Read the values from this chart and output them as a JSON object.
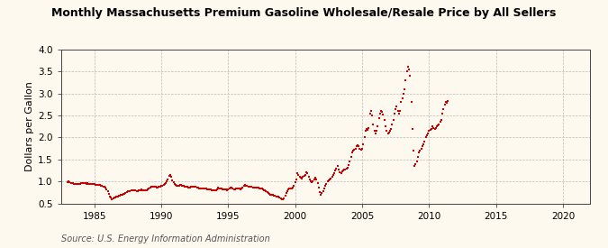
{
  "title": "Monthly Massachusetts Premium Gasoline Wholesale/Resale Price by All Sellers",
  "ylabel": "Dollars per Gallon",
  "source": "Source: U.S. Energy Information Administration",
  "background_color": "#fef9ee",
  "dot_color": "#cc0000",
  "dot_size": 3,
  "xlim": [
    1982.5,
    2022
  ],
  "ylim": [
    0.5,
    4.0
  ],
  "xticks": [
    1985,
    1990,
    1995,
    2000,
    2005,
    2010,
    2015,
    2020
  ],
  "yticks": [
    0.5,
    1.0,
    1.5,
    2.0,
    2.5,
    3.0,
    3.5,
    4.0
  ],
  "data": [
    [
      1983.0,
      0.99
    ],
    [
      1983.08,
      1.0
    ],
    [
      1983.17,
      0.99
    ],
    [
      1983.25,
      0.97
    ],
    [
      1983.33,
      0.96
    ],
    [
      1983.42,
      0.96
    ],
    [
      1983.5,
      0.95
    ],
    [
      1983.58,
      0.95
    ],
    [
      1983.67,
      0.94
    ],
    [
      1983.75,
      0.94
    ],
    [
      1983.83,
      0.94
    ],
    [
      1983.92,
      0.95
    ],
    [
      1984.0,
      0.96
    ],
    [
      1984.08,
      0.96
    ],
    [
      1984.17,
      0.97
    ],
    [
      1984.25,
      0.97
    ],
    [
      1984.33,
      0.96
    ],
    [
      1984.42,
      0.95
    ],
    [
      1984.5,
      0.96
    ],
    [
      1984.58,
      0.95
    ],
    [
      1984.67,
      0.95
    ],
    [
      1984.75,
      0.94
    ],
    [
      1984.83,
      0.94
    ],
    [
      1984.92,
      0.94
    ],
    [
      1985.0,
      0.94
    ],
    [
      1985.08,
      0.93
    ],
    [
      1985.17,
      0.93
    ],
    [
      1985.25,
      0.93
    ],
    [
      1985.33,
      0.93
    ],
    [
      1985.42,
      0.92
    ],
    [
      1985.5,
      0.91
    ],
    [
      1985.58,
      0.9
    ],
    [
      1985.67,
      0.89
    ],
    [
      1985.75,
      0.88
    ],
    [
      1985.83,
      0.85
    ],
    [
      1985.92,
      0.82
    ],
    [
      1986.0,
      0.78
    ],
    [
      1986.08,
      0.72
    ],
    [
      1986.17,
      0.65
    ],
    [
      1986.25,
      0.63
    ],
    [
      1986.33,
      0.6
    ],
    [
      1986.42,
      0.61
    ],
    [
      1986.5,
      0.63
    ],
    [
      1986.58,
      0.64
    ],
    [
      1986.67,
      0.65
    ],
    [
      1986.75,
      0.66
    ],
    [
      1986.83,
      0.67
    ],
    [
      1986.92,
      0.68
    ],
    [
      1987.0,
      0.69
    ],
    [
      1987.08,
      0.7
    ],
    [
      1987.17,
      0.71
    ],
    [
      1987.25,
      0.72
    ],
    [
      1987.33,
      0.74
    ],
    [
      1987.42,
      0.75
    ],
    [
      1987.5,
      0.77
    ],
    [
      1987.58,
      0.78
    ],
    [
      1987.67,
      0.78
    ],
    [
      1987.75,
      0.79
    ],
    [
      1987.83,
      0.8
    ],
    [
      1987.92,
      0.8
    ],
    [
      1988.0,
      0.79
    ],
    [
      1988.08,
      0.79
    ],
    [
      1988.17,
      0.78
    ],
    [
      1988.25,
      0.78
    ],
    [
      1988.33,
      0.79
    ],
    [
      1988.42,
      0.8
    ],
    [
      1988.5,
      0.81
    ],
    [
      1988.58,
      0.8
    ],
    [
      1988.67,
      0.79
    ],
    [
      1988.75,
      0.79
    ],
    [
      1988.83,
      0.79
    ],
    [
      1988.92,
      0.8
    ],
    [
      1989.0,
      0.82
    ],
    [
      1989.08,
      0.84
    ],
    [
      1989.17,
      0.86
    ],
    [
      1989.25,
      0.88
    ],
    [
      1989.33,
      0.87
    ],
    [
      1989.42,
      0.87
    ],
    [
      1989.5,
      0.88
    ],
    [
      1989.58,
      0.87
    ],
    [
      1989.67,
      0.86
    ],
    [
      1989.75,
      0.86
    ],
    [
      1989.83,
      0.87
    ],
    [
      1989.92,
      0.88
    ],
    [
      1990.0,
      0.9
    ],
    [
      1990.08,
      0.91
    ],
    [
      1990.17,
      0.93
    ],
    [
      1990.25,
      0.95
    ],
    [
      1990.33,
      0.97
    ],
    [
      1990.42,
      1.0
    ],
    [
      1990.5,
      1.05
    ],
    [
      1990.58,
      1.12
    ],
    [
      1990.67,
      1.15
    ],
    [
      1990.75,
      1.1
    ],
    [
      1990.83,
      1.02
    ],
    [
      1990.92,
      0.98
    ],
    [
      1991.0,
      0.95
    ],
    [
      1991.08,
      0.92
    ],
    [
      1991.17,
      0.9
    ],
    [
      1991.25,
      0.9
    ],
    [
      1991.33,
      0.91
    ],
    [
      1991.42,
      0.92
    ],
    [
      1991.5,
      0.92
    ],
    [
      1991.58,
      0.91
    ],
    [
      1991.67,
      0.9
    ],
    [
      1991.75,
      0.89
    ],
    [
      1991.83,
      0.88
    ],
    [
      1991.92,
      0.87
    ],
    [
      1992.0,
      0.86
    ],
    [
      1992.08,
      0.85
    ],
    [
      1992.17,
      0.85
    ],
    [
      1992.25,
      0.87
    ],
    [
      1992.33,
      0.88
    ],
    [
      1992.42,
      0.87
    ],
    [
      1992.5,
      0.88
    ],
    [
      1992.58,
      0.87
    ],
    [
      1992.67,
      0.86
    ],
    [
      1992.75,
      0.85
    ],
    [
      1992.83,
      0.84
    ],
    [
      1992.92,
      0.83
    ],
    [
      1993.0,
      0.83
    ],
    [
      1993.08,
      0.83
    ],
    [
      1993.17,
      0.83
    ],
    [
      1993.25,
      0.83
    ],
    [
      1993.33,
      0.83
    ],
    [
      1993.42,
      0.82
    ],
    [
      1993.5,
      0.82
    ],
    [
      1993.58,
      0.82
    ],
    [
      1993.67,
      0.81
    ],
    [
      1993.75,
      0.8
    ],
    [
      1993.83,
      0.79
    ],
    [
      1993.92,
      0.79
    ],
    [
      1994.0,
      0.79
    ],
    [
      1994.08,
      0.8
    ],
    [
      1994.17,
      0.82
    ],
    [
      1994.25,
      0.85
    ],
    [
      1994.33,
      0.84
    ],
    [
      1994.42,
      0.84
    ],
    [
      1994.5,
      0.83
    ],
    [
      1994.58,
      0.82
    ],
    [
      1994.67,
      0.81
    ],
    [
      1994.75,
      0.81
    ],
    [
      1994.83,
      0.81
    ],
    [
      1994.92,
      0.8
    ],
    [
      1995.0,
      0.82
    ],
    [
      1995.08,
      0.83
    ],
    [
      1995.17,
      0.85
    ],
    [
      1995.25,
      0.85
    ],
    [
      1995.33,
      0.83
    ],
    [
      1995.42,
      0.82
    ],
    [
      1995.5,
      0.82
    ],
    [
      1995.58,
      0.83
    ],
    [
      1995.67,
      0.83
    ],
    [
      1995.75,
      0.83
    ],
    [
      1995.83,
      0.83
    ],
    [
      1995.92,
      0.82
    ],
    [
      1996.0,
      0.83
    ],
    [
      1996.08,
      0.86
    ],
    [
      1996.17,
      0.91
    ],
    [
      1996.25,
      0.93
    ],
    [
      1996.33,
      0.91
    ],
    [
      1996.42,
      0.9
    ],
    [
      1996.5,
      0.89
    ],
    [
      1996.58,
      0.89
    ],
    [
      1996.67,
      0.88
    ],
    [
      1996.75,
      0.87
    ],
    [
      1996.83,
      0.86
    ],
    [
      1996.92,
      0.85
    ],
    [
      1997.0,
      0.85
    ],
    [
      1997.08,
      0.85
    ],
    [
      1997.17,
      0.85
    ],
    [
      1997.25,
      0.86
    ],
    [
      1997.33,
      0.84
    ],
    [
      1997.42,
      0.84
    ],
    [
      1997.5,
      0.83
    ],
    [
      1997.58,
      0.82
    ],
    [
      1997.67,
      0.8
    ],
    [
      1997.75,
      0.79
    ],
    [
      1997.83,
      0.77
    ],
    [
      1997.92,
      0.75
    ],
    [
      1998.0,
      0.73
    ],
    [
      1998.08,
      0.72
    ],
    [
      1998.17,
      0.7
    ],
    [
      1998.25,
      0.7
    ],
    [
      1998.33,
      0.69
    ],
    [
      1998.42,
      0.68
    ],
    [
      1998.5,
      0.67
    ],
    [
      1998.58,
      0.66
    ],
    [
      1998.67,
      0.65
    ],
    [
      1998.75,
      0.65
    ],
    [
      1998.83,
      0.64
    ],
    [
      1998.92,
      0.62
    ],
    [
      1999.0,
      0.6
    ],
    [
      1999.08,
      0.6
    ],
    [
      1999.17,
      0.62
    ],
    [
      1999.25,
      0.68
    ],
    [
      1999.33,
      0.73
    ],
    [
      1999.42,
      0.78
    ],
    [
      1999.5,
      0.82
    ],
    [
      1999.58,
      0.84
    ],
    [
      1999.67,
      0.84
    ],
    [
      1999.75,
      0.83
    ],
    [
      1999.83,
      0.85
    ],
    [
      1999.92,
      0.9
    ],
    [
      2000.0,
      0.98
    ],
    [
      2000.08,
      1.05
    ],
    [
      2000.17,
      1.18
    ],
    [
      2000.25,
      1.15
    ],
    [
      2000.33,
      1.1
    ],
    [
      2000.42,
      1.08
    ],
    [
      2000.5,
      1.07
    ],
    [
      2000.58,
      1.1
    ],
    [
      2000.67,
      1.12
    ],
    [
      2000.75,
      1.15
    ],
    [
      2000.83,
      1.2
    ],
    [
      2000.92,
      1.18
    ],
    [
      2001.0,
      1.1
    ],
    [
      2001.08,
      1.05
    ],
    [
      2001.17,
      1.0
    ],
    [
      2001.25,
      0.98
    ],
    [
      2001.33,
      1.0
    ],
    [
      2001.42,
      1.05
    ],
    [
      2001.5,
      1.08
    ],
    [
      2001.58,
      1.05
    ],
    [
      2001.67,
      0.97
    ],
    [
      2001.75,
      0.85
    ],
    [
      2001.83,
      0.75
    ],
    [
      2001.92,
      0.7
    ],
    [
      2002.0,
      0.73
    ],
    [
      2002.08,
      0.77
    ],
    [
      2002.17,
      0.83
    ],
    [
      2002.25,
      0.9
    ],
    [
      2002.33,
      0.95
    ],
    [
      2002.42,
      1.0
    ],
    [
      2002.5,
      1.02
    ],
    [
      2002.58,
      1.05
    ],
    [
      2002.67,
      1.07
    ],
    [
      2002.75,
      1.1
    ],
    [
      2002.83,
      1.15
    ],
    [
      2002.92,
      1.18
    ],
    [
      2003.0,
      1.25
    ],
    [
      2003.08,
      1.3
    ],
    [
      2003.17,
      1.35
    ],
    [
      2003.25,
      1.28
    ],
    [
      2003.33,
      1.2
    ],
    [
      2003.42,
      1.18
    ],
    [
      2003.5,
      1.22
    ],
    [
      2003.58,
      1.25
    ],
    [
      2003.67,
      1.27
    ],
    [
      2003.75,
      1.28
    ],
    [
      2003.83,
      1.3
    ],
    [
      2003.92,
      1.32
    ],
    [
      2004.0,
      1.38
    ],
    [
      2004.08,
      1.45
    ],
    [
      2004.17,
      1.55
    ],
    [
      2004.25,
      1.65
    ],
    [
      2004.33,
      1.7
    ],
    [
      2004.42,
      1.72
    ],
    [
      2004.5,
      1.75
    ],
    [
      2004.58,
      1.8
    ],
    [
      2004.67,
      1.82
    ],
    [
      2004.75,
      1.8
    ],
    [
      2004.83,
      1.75
    ],
    [
      2004.92,
      1.72
    ],
    [
      2005.0,
      1.75
    ],
    [
      2005.08,
      1.85
    ],
    [
      2005.17,
      2.0
    ],
    [
      2005.25,
      2.15
    ],
    [
      2005.33,
      2.2
    ],
    [
      2005.42,
      2.18
    ],
    [
      2005.5,
      2.22
    ],
    [
      2005.58,
      2.55
    ],
    [
      2005.67,
      2.6
    ],
    [
      2005.75,
      2.5
    ],
    [
      2005.83,
      2.3
    ],
    [
      2005.92,
      2.15
    ],
    [
      2006.0,
      2.1
    ],
    [
      2006.08,
      2.15
    ],
    [
      2006.17,
      2.25
    ],
    [
      2006.25,
      2.45
    ],
    [
      2006.33,
      2.55
    ],
    [
      2006.42,
      2.6
    ],
    [
      2006.5,
      2.58
    ],
    [
      2006.58,
      2.52
    ],
    [
      2006.67,
      2.4
    ],
    [
      2006.75,
      2.25
    ],
    [
      2006.83,
      2.15
    ],
    [
      2006.92,
      2.1
    ],
    [
      2007.0,
      2.12
    ],
    [
      2007.08,
      2.15
    ],
    [
      2007.17,
      2.2
    ],
    [
      2007.25,
      2.3
    ],
    [
      2007.33,
      2.4
    ],
    [
      2007.42,
      2.55
    ],
    [
      2007.5,
      2.65
    ],
    [
      2007.58,
      2.7
    ],
    [
      2007.67,
      2.6
    ],
    [
      2007.75,
      2.55
    ],
    [
      2007.83,
      2.6
    ],
    [
      2007.92,
      2.8
    ],
    [
      2008.0,
      2.9
    ],
    [
      2008.08,
      3.0
    ],
    [
      2008.17,
      3.1
    ],
    [
      2008.25,
      3.3
    ],
    [
      2008.33,
      3.5
    ],
    [
      2008.42,
      3.6
    ],
    [
      2008.5,
      3.55
    ],
    [
      2008.58,
      3.4
    ],
    [
      2008.67,
      2.8
    ],
    [
      2008.75,
      2.2
    ],
    [
      2008.83,
      1.7
    ],
    [
      2008.92,
      1.35
    ],
    [
      2009.0,
      1.4
    ],
    [
      2009.08,
      1.45
    ],
    [
      2009.17,
      1.55
    ],
    [
      2009.25,
      1.65
    ],
    [
      2009.33,
      1.7
    ],
    [
      2009.42,
      1.75
    ],
    [
      2009.5,
      1.8
    ],
    [
      2009.58,
      1.85
    ],
    [
      2009.67,
      1.9
    ],
    [
      2009.75,
      2.0
    ],
    [
      2009.83,
      2.05
    ],
    [
      2009.92,
      2.1
    ],
    [
      2010.0,
      2.15
    ],
    [
      2010.08,
      2.18
    ],
    [
      2010.17,
      2.2
    ],
    [
      2010.25,
      2.25
    ],
    [
      2010.33,
      2.22
    ],
    [
      2010.42,
      2.2
    ],
    [
      2010.5,
      2.22
    ],
    [
      2010.58,
      2.25
    ],
    [
      2010.67,
      2.28
    ],
    [
      2010.75,
      2.3
    ],
    [
      2010.83,
      2.35
    ],
    [
      2010.92,
      2.4
    ],
    [
      2011.0,
      2.55
    ],
    [
      2011.08,
      2.65
    ],
    [
      2011.17,
      2.75
    ],
    [
      2011.25,
      2.8
    ],
    [
      2011.33,
      2.78
    ],
    [
      2011.42,
      2.82
    ]
  ]
}
